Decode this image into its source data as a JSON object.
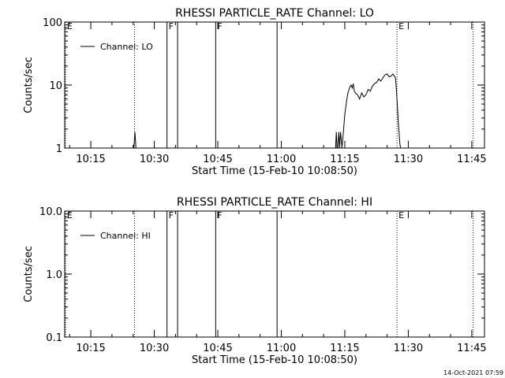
{
  "footer": {
    "timestamp": "14-Oct-2021 07:59"
  },
  "colors": {
    "background": "#ffffff",
    "foreground": "#000000"
  },
  "chart_data": [
    {
      "type": "line",
      "title": "RHESSI PARTICLE_RATE Channel: LO",
      "xlabel": "Start Time (15-Feb-10 10:08:50)",
      "ylabel": "Counts/sec",
      "y_scale": "log",
      "ylim": [
        1,
        100
      ],
      "xlim": [
        "10:08:50",
        "11:48:00"
      ],
      "y_ticks": [
        {
          "v": 1,
          "label": "1"
        },
        {
          "v": 10,
          "label": "10"
        },
        {
          "v": 100,
          "label": "100"
        }
      ],
      "x_ticks": [
        "10:15",
        "10:30",
        "10:45",
        "11:00",
        "11:15",
        "11:30",
        "11:45"
      ],
      "legend": {
        "label": "Channel: LO",
        "placement": "top-left"
      },
      "grid": false,
      "event_markers": [
        {
          "time": "10:09:00",
          "label": "E",
          "style": "dotted"
        },
        {
          "time": "10:25:20",
          "label": "",
          "style": "dotted"
        },
        {
          "time": "10:33:00",
          "label": "F",
          "style": "solid"
        },
        {
          "time": "10:35:30",
          "label": "",
          "style": "solid"
        },
        {
          "time": "10:44:30",
          "label": "F",
          "style": "solid"
        },
        {
          "time": "10:59:00",
          "label": "",
          "style": "solid"
        },
        {
          "time": "11:27:20",
          "label": "E",
          "style": "dotted"
        },
        {
          "time": "11:45:20",
          "label": "",
          "style": "dotted"
        }
      ],
      "series": [
        {
          "name": "Channel: LO",
          "x": [
            "10:25:05",
            "10:25:15",
            "10:25:25",
            "10:25:40",
            "11:12:50",
            "11:13:00",
            "11:13:10",
            "11:13:20",
            "11:13:35",
            "11:13:45",
            "11:14:00",
            "11:14:20",
            "11:14:40",
            "11:15:00",
            "11:15:15",
            "11:15:30",
            "11:15:45",
            "11:16:00",
            "11:16:15",
            "11:16:30",
            "11:16:45",
            "11:17:00",
            "11:17:15",
            "11:17:30",
            "11:18:00",
            "11:18:30",
            "11:19:00",
            "11:19:30",
            "11:20:00",
            "11:20:30",
            "11:21:00",
            "11:21:30",
            "11:22:00",
            "11:22:30",
            "11:23:00",
            "11:23:30",
            "11:24:00",
            "11:24:30",
            "11:25:00",
            "11:25:30",
            "11:26:00",
            "11:26:20",
            "11:26:40",
            "11:27:00",
            "11:27:20",
            "11:27:40",
            "11:28:00",
            "11:28:10"
          ],
          "values": [
            1.0,
            1.2,
            1.8,
            1.0,
            1.0,
            1.8,
            1.0,
            1.0,
            1.8,
            1.0,
            1.8,
            1.0,
            1.8,
            3.5,
            4.5,
            6.0,
            7.5,
            8.5,
            9.5,
            10.0,
            9.0,
            10.5,
            8.0,
            7.5,
            7.0,
            6.0,
            7.5,
            6.5,
            7.0,
            8.5,
            8.0,
            9.5,
            10.5,
            11.0,
            12.5,
            11.5,
            13.0,
            14.5,
            15.0,
            13.5,
            14.0,
            15.0,
            14.0,
            13.0,
            6.0,
            2.5,
            1.2,
            1.0
          ]
        }
      ]
    },
    {
      "type": "line",
      "title": "RHESSI PARTICLE_RATE Channel: HI",
      "xlabel": "Start Time (15-Feb-10 10:08:50)",
      "ylabel": "Counts/sec",
      "y_scale": "log",
      "ylim": [
        0.1,
        10.0
      ],
      "xlim": [
        "10:08:50",
        "11:48:00"
      ],
      "y_ticks": [
        {
          "v": 0.1,
          "label": "0.1"
        },
        {
          "v": 1.0,
          "label": "1.0"
        },
        {
          "v": 10.0,
          "label": "10.0"
        }
      ],
      "x_ticks": [
        "10:15",
        "10:30",
        "10:45",
        "11:00",
        "11:15",
        "11:30",
        "11:45"
      ],
      "legend": {
        "label": "Channel: HI",
        "placement": "top-left"
      },
      "grid": false,
      "event_markers": [
        {
          "time": "10:09:00",
          "label": "E",
          "style": "dotted"
        },
        {
          "time": "10:25:20",
          "label": "",
          "style": "dotted"
        },
        {
          "time": "10:33:00",
          "label": "F",
          "style": "solid"
        },
        {
          "time": "10:35:30",
          "label": "",
          "style": "solid"
        },
        {
          "time": "10:44:30",
          "label": "F",
          "style": "solid"
        },
        {
          "time": "10:59:00",
          "label": "",
          "style": "solid"
        },
        {
          "time": "11:27:20",
          "label": "E",
          "style": "dotted"
        },
        {
          "time": "11:45:20",
          "label": "",
          "style": "dotted"
        }
      ],
      "series": [
        {
          "name": "Channel: HI",
          "x": [],
          "values": []
        }
      ]
    }
  ]
}
